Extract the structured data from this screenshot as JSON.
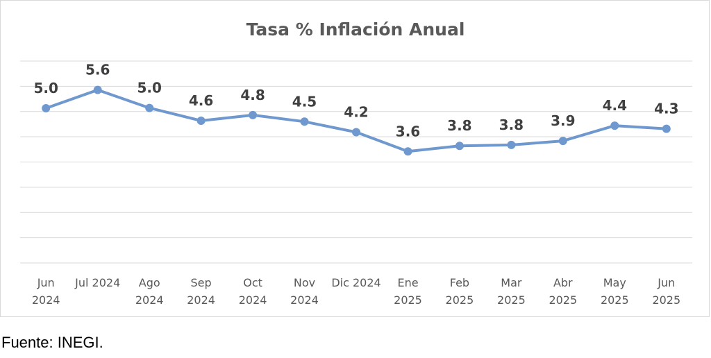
{
  "chart_data": {
    "type": "line",
    "title": "Tasa % Inflación Anual",
    "categories": [
      [
        "Jun",
        "2024"
      ],
      [
        "Jul 2024"
      ],
      [
        "Ago",
        "2024"
      ],
      [
        "Sep",
        "2024"
      ],
      [
        "Oct",
        "2024"
      ],
      [
        "Nov",
        "2024"
      ],
      [
        "Dic 2024"
      ],
      [
        "Ene",
        "2025"
      ],
      [
        "Feb",
        "2025"
      ],
      [
        "Mar",
        "2025"
      ],
      [
        "Abr",
        "2025"
      ],
      [
        "May",
        "2025"
      ],
      [
        "Jun",
        "2025"
      ]
    ],
    "values": [
      4.98,
      5.57,
      4.99,
      4.58,
      4.76,
      4.55,
      4.21,
      3.59,
      3.77,
      3.8,
      3.93,
      4.42,
      4.32
    ],
    "data_labels": [
      "5.0",
      "5.6",
      "5.0",
      "4.6",
      "4.8",
      "4.5",
      "4.2",
      "3.6",
      "3.8",
      "3.8",
      "3.9",
      "4.4",
      "4.3"
    ],
    "ylim": [
      0,
      6.5
    ],
    "grid": true,
    "series_color": "#6f98cf",
    "xlabel": "",
    "ylabel": ""
  },
  "source_note": "Fuente: INEGI."
}
